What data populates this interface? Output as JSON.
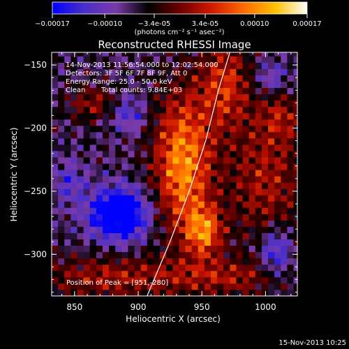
{
  "colorbar": {
    "ticks": [
      "-0.00017",
      "-0.00010",
      "-3.4e-05",
      "3.4e-05",
      "0.00010",
      "0.00017"
    ],
    "units": "(photons cm⁻² s⁻¹ asec⁻²)",
    "range": [
      -0.00017,
      0.00017
    ],
    "stops": [
      "#0000ff",
      "#4a2fc8",
      "#7a3aa8",
      "#000000",
      "#6a0000",
      "#d01800",
      "#ff6a00",
      "#ffc000",
      "#ffffff"
    ]
  },
  "info": {
    "time_range": "14-Nov-2013 11:56:54.000 to 12:02:54.000",
    "detectors": "Detectors: 3F 5F 6F 7F 8F 9F, Att 0",
    "energy": "Energy Range: 25.0 - 50.0 keV",
    "method": "Clean",
    "counts": "Total counts: 9.84E+03",
    "peak": "Position of Peak = [951,-280]"
  },
  "footer": {
    "date": "15-Nov-2013 10:25"
  },
  "chart_data": {
    "type": "heatmap",
    "title": "Reconstructed RHESSI Image",
    "xlabel": "Heliocentric X (arcsec)",
    "ylabel": "Heliocentric Y (arcsec)",
    "xlim": [
      832,
      1025
    ],
    "ylim": [
      -333,
      -140
    ],
    "xticks": [
      850,
      900,
      950,
      1000
    ],
    "yticks": [
      -150,
      -200,
      -250,
      -300
    ],
    "xtick_labels": [
      "850",
      "900",
      "950",
      "1000"
    ],
    "ytick_labels": [
      "−150",
      "−200",
      "−250",
      "−300"
    ],
    "peak": [
      951,
      -280
    ],
    "limb_curve": [
      [
        907,
        -333
      ],
      [
        925,
        -290
      ],
      [
        940,
        -250
      ],
      [
        953,
        -210
      ],
      [
        963,
        -170
      ],
      [
        972,
        -140
      ]
    ],
    "sources": [
      {
        "x": 935,
        "y": -228,
        "sx": 16,
        "sy": 40,
        "amp": 0.00016
      },
      {
        "x": 952,
        "y": -282,
        "sx": 10,
        "sy": 14,
        "amp": 0.00013
      },
      {
        "x": 968,
        "y": -165,
        "sx": 14,
        "sy": 25,
        "amp": 0.0001
      },
      {
        "x": 1000,
        "y": -240,
        "sx": 22,
        "sy": 38,
        "amp": 8e-05
      },
      {
        "x": 880,
        "y": -318,
        "sx": 42,
        "sy": 12,
        "amp": 8e-05
      },
      {
        "x": 970,
        "y": -318,
        "sx": 30,
        "sy": 10,
        "amp": 7e-05
      },
      {
        "x": 865,
        "y": -180,
        "sx": 14,
        "sy": 10,
        "amp": 7e-05
      },
      {
        "x": 1012,
        "y": -190,
        "sx": 12,
        "sy": 14,
        "amp": 6e-05
      },
      {
        "x": 885,
        "y": -268,
        "sx": 16,
        "sy": 14,
        "amp": -0.00018
      },
      {
        "x": 1008,
        "y": -298,
        "sx": 9,
        "sy": 14,
        "amp": -0.0001
      },
      {
        "x": 892,
        "y": -188,
        "sx": 10,
        "sy": 10,
        "amp": -7e-05
      },
      {
        "x": 1005,
        "y": -160,
        "sx": 10,
        "sy": 10,
        "amp": -6e-05
      },
      {
        "x": 846,
        "y": -243,
        "sx": 9,
        "sy": 12,
        "amp": -6e-05
      }
    ]
  }
}
